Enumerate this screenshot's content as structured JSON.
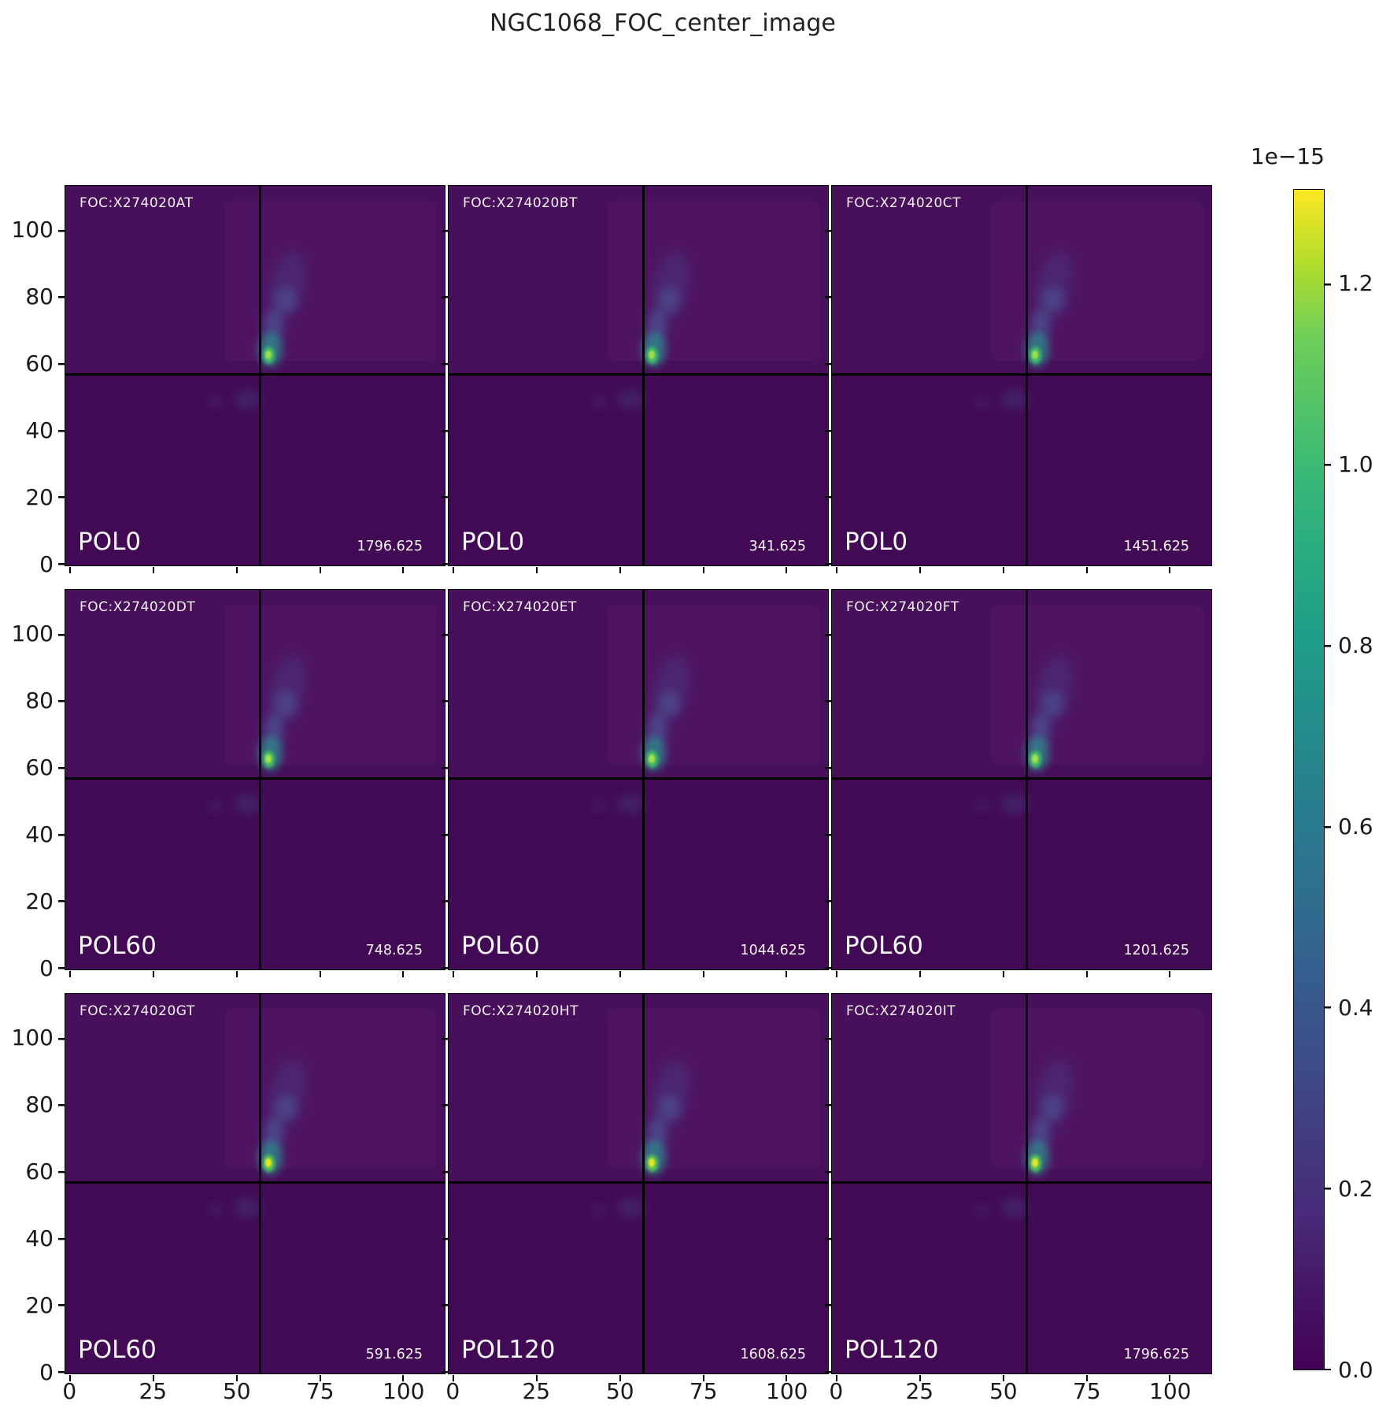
{
  "title": "NGC1068_FOC_center_image",
  "colors": {
    "panel_bg": "#420a54",
    "wisp_blue": "#4a7ab5",
    "core_halo": "#2b8f8f",
    "crosshair": "#000000",
    "colorbar_bottom": "#440154",
    "colorbar_top": "#fde725"
  },
  "axes": {
    "y_ticks": [
      "0",
      "20",
      "40",
      "60",
      "80",
      "100"
    ],
    "x_ticks": [
      "0",
      "25",
      "50",
      "75",
      "100"
    ]
  },
  "colorbar": {
    "offset_label": "1e−15",
    "ticks": [
      "0.0",
      "0.2",
      "0.4",
      "0.6",
      "0.8",
      "1.0",
      "1.2"
    ]
  },
  "panels": [
    {
      "foc": "FOC:X274020AT",
      "pol": "POL0",
      "value": "1796.625",
      "core_color": "#3fbf6d",
      "peak_color": "#9ade4b"
    },
    {
      "foc": "FOC:X274020BT",
      "pol": "POL0",
      "value": "341.625",
      "core_color": "#3fbf6d",
      "peak_color": "#9ade4b"
    },
    {
      "foc": "FOC:X274020CT",
      "pol": "POL0",
      "value": "1451.625",
      "core_color": "#3fbf6d",
      "peak_color": "#9ade4b"
    },
    {
      "foc": "FOC:X274020DT",
      "pol": "POL60",
      "value": "748.625",
      "core_color": "#43c266",
      "peak_color": "#a4e04a"
    },
    {
      "foc": "FOC:X274020ET",
      "pol": "POL60",
      "value": "1044.625",
      "core_color": "#43c266",
      "peak_color": "#a4e04a"
    },
    {
      "foc": "FOC:X274020FT",
      "pol": "POL60",
      "value": "1201.625",
      "core_color": "#43c266",
      "peak_color": "#a4e04a"
    },
    {
      "foc": "FOC:X274020GT",
      "pol": "POL60",
      "value": "591.625",
      "core_color": "#59c95a",
      "peak_color": "#e8e620"
    },
    {
      "foc": "FOC:X274020HT",
      "pol": "POL120",
      "value": "1608.625",
      "core_color": "#59c95a",
      "peak_color": "#e8e620"
    },
    {
      "foc": "FOC:X274020IT",
      "pol": "POL120",
      "value": "1796.625",
      "core_color": "#59c95a",
      "peak_color": "#e8e620"
    }
  ],
  "chart_data": {
    "type": "heatmap",
    "title": "NGC1068_FOC_center_image",
    "layout": "3x3 grid of HST FOC polarimetry intensity images with shared axes and a common viridis colorbar",
    "xlabel": "",
    "ylabel": "",
    "x_tick_values": [
      0,
      25,
      50,
      75,
      100
    ],
    "y_tick_values": [
      0,
      20,
      40,
      60,
      80,
      100
    ],
    "xlim": [
      -1.5,
      112.5
    ],
    "ylim": [
      -0.5,
      113.5
    ],
    "grid": false,
    "legend": "none",
    "colorbar": {
      "colormap": "viridis",
      "scale_factor": "1e-15",
      "tick_values": [
        0.0,
        0.2,
        0.4,
        0.6,
        0.8,
        1.0,
        1.2
      ],
      "vmin": 0.0,
      "vmax_approx": 1.3,
      "position": "right"
    },
    "crosshair_lines": {
      "x": 57,
      "y": 56
    },
    "peak_pixel_approx": {
      "x": 59,
      "y": 64
    },
    "panels": [
      {
        "row": 1,
        "col": 1,
        "foc_id": "X274020AT",
        "polarizer": "POL0",
        "value": 1796.625
      },
      {
        "row": 1,
        "col": 2,
        "foc_id": "X274020BT",
        "polarizer": "POL0",
        "value": 341.625
      },
      {
        "row": 1,
        "col": 3,
        "foc_id": "X274020CT",
        "polarizer": "POL0",
        "value": 1451.625
      },
      {
        "row": 2,
        "col": 1,
        "foc_id": "X274020DT",
        "polarizer": "POL60",
        "value": 748.625
      },
      {
        "row": 2,
        "col": 2,
        "foc_id": "X274020ET",
        "polarizer": "POL60",
        "value": 1044.625
      },
      {
        "row": 2,
        "col": 3,
        "foc_id": "X274020FT",
        "polarizer": "POL60",
        "value": 1201.625
      },
      {
        "row": 3,
        "col": 1,
        "foc_id": "X274020GT",
        "polarizer": "POL60",
        "value": 591.625
      },
      {
        "row": 3,
        "col": 2,
        "foc_id": "X274020HT",
        "polarizer": "POL120",
        "value": 1608.625
      },
      {
        "row": 3,
        "col": 3,
        "foc_id": "X274020IT",
        "polarizer": "POL120",
        "value": 1796.625
      }
    ]
  }
}
